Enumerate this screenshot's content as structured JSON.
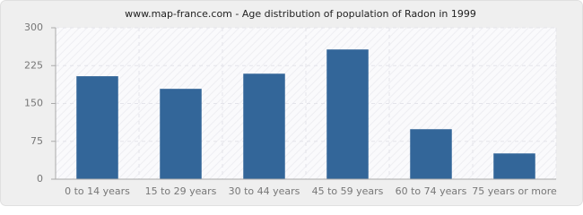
{
  "chart_data": {
    "type": "bar",
    "title": "www.map-france.com - Age distribution of population of Radon in 1999",
    "categories": [
      "0 to 14 years",
      "15 to 29 years",
      "30 to 44 years",
      "45 to 59 years",
      "60 to 74 years",
      "75 years or more"
    ],
    "values": [
      204,
      179,
      209,
      257,
      99,
      51
    ],
    "color": "#336699",
    "ylim": [
      0,
      300
    ],
    "yticks": [
      0,
      75,
      150,
      225,
      300
    ],
    "grid": true
  }
}
